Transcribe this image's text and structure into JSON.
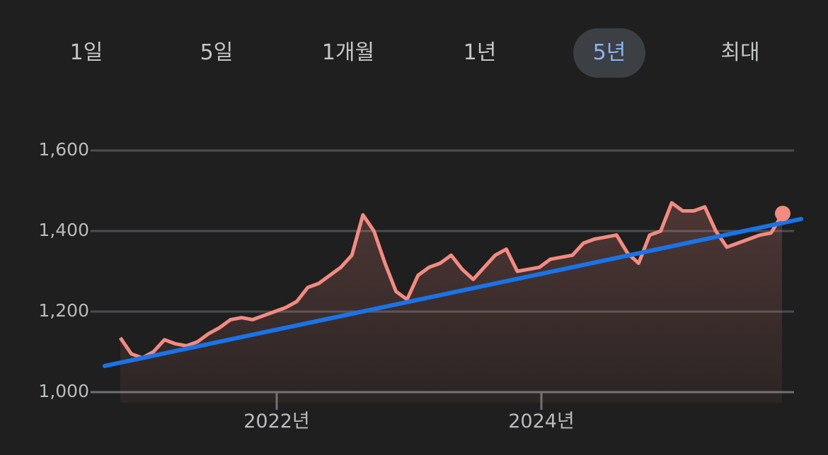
{
  "range_tabs": {
    "items": [
      {
        "label": "1일",
        "selected": false
      },
      {
        "label": "5일",
        "selected": false
      },
      {
        "label": "1개월",
        "selected": false
      },
      {
        "label": "1년",
        "selected": false
      },
      {
        "label": "5년",
        "selected": true
      },
      {
        "label": "최대",
        "selected": false
      }
    ]
  },
  "colors": {
    "background": "#1f1f1f",
    "price_line": "#f28b82",
    "trend_line": "#1a73e8",
    "selected_tab_bg": "#3c3f43",
    "selected_tab_text": "#8ab4f8",
    "gridline": "#4a4c4f"
  },
  "chart_data": {
    "type": "line",
    "title": "",
    "xlabel": "",
    "ylabel": "",
    "ylim": [
      1000,
      1600
    ],
    "y_ticks": [
      "1,600",
      "1,400",
      "1,200",
      "1,000"
    ],
    "y_tick_values": [
      1600,
      1400,
      1200,
      1000
    ],
    "x_ticks": [
      "2022년",
      "2024년"
    ],
    "grid": true,
    "legend": null,
    "x_range": [
      "2020-11",
      "2025-11"
    ],
    "series": [
      {
        "name": "price",
        "color": "#f28b82",
        "x": [
          "2020-11",
          "2020-12",
          "2021-01",
          "2021-02",
          "2021-03",
          "2021-04",
          "2021-05",
          "2021-06",
          "2021-07",
          "2021-08",
          "2021-09",
          "2021-10",
          "2021-11",
          "2021-12",
          "2022-01",
          "2022-02",
          "2022-03",
          "2022-04",
          "2022-05",
          "2022-06",
          "2022-07",
          "2022-08",
          "2022-09",
          "2022-10",
          "2022-11",
          "2022-12",
          "2023-01",
          "2023-02",
          "2023-03",
          "2023-04",
          "2023-05",
          "2023-06",
          "2023-07",
          "2023-08",
          "2023-09",
          "2023-10",
          "2023-11",
          "2023-12",
          "2024-01",
          "2024-02",
          "2024-03",
          "2024-04",
          "2024-05",
          "2024-06",
          "2024-07",
          "2024-08",
          "2024-09",
          "2024-10",
          "2024-11",
          "2024-12",
          "2025-01",
          "2025-02",
          "2025-03",
          "2025-04",
          "2025-05",
          "2025-06",
          "2025-07",
          "2025-08",
          "2025-09",
          "2025-10",
          "2025-11"
        ],
        "values": [
          1135,
          1095,
          1085,
          1100,
          1130,
          1120,
          1115,
          1125,
          1145,
          1160,
          1180,
          1185,
          1180,
          1190,
          1200,
          1210,
          1225,
          1260,
          1270,
          1290,
          1310,
          1340,
          1440,
          1400,
          1320,
          1250,
          1230,
          1290,
          1310,
          1320,
          1340,
          1305,
          1280,
          1310,
          1340,
          1355,
          1300,
          1305,
          1310,
          1330,
          1335,
          1340,
          1370,
          1380,
          1385,
          1390,
          1345,
          1320,
          1390,
          1400,
          1470,
          1450,
          1450,
          1460,
          1400,
          1360,
          1370,
          1380,
          1390,
          1395,
          1440
        ]
      },
      {
        "name": "trend",
        "color": "#1a73e8",
        "x": [
          "start",
          "end"
        ],
        "values": [
          1065,
          1430
        ]
      }
    ],
    "last_point_marker": {
      "value": 1440
    }
  }
}
